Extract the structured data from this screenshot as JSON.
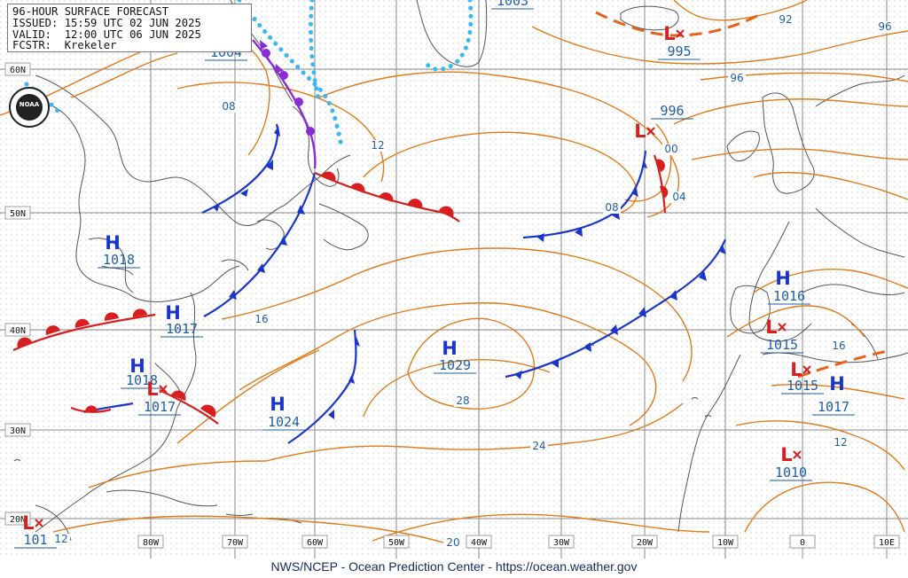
{
  "header": {
    "line1": "96-HOUR SURFACE FORECAST",
    "line2": "ISSUED: 15:59 UTC 02 JUN 2025",
    "line3": "VALID:  12:00 UTC 06 JUN 2025",
    "line4": "FCSTR:  Krekeler"
  },
  "logo_text": "NOAA",
  "footer": "NWS/NCEP - Ocean Prediction Center - https://ocean.weather.gov",
  "lat_labels": [
    "60N",
    "50N",
    "40N",
    "30N",
    "20N"
  ],
  "lon_labels": [
    "80W",
    "70W",
    "60W",
    "50W",
    "40W",
    "30W",
    "20W",
    "10W",
    "0",
    "10E"
  ],
  "isobar_labels": [
    "08",
    "12",
    "16",
    "20",
    "24",
    "28",
    "92",
    "96",
    "96",
    "00",
    "04",
    "08",
    "12",
    "16",
    "12"
  ],
  "systems": [
    {
      "type": "L",
      "value": "1003"
    },
    {
      "type": "L",
      "value": "1004"
    },
    {
      "type": "L",
      "value": "995"
    },
    {
      "type": "L",
      "value": "996"
    },
    {
      "type": "H",
      "value": "1018"
    },
    {
      "type": "H",
      "value": "1017"
    },
    {
      "type": "H",
      "value": "1018"
    },
    {
      "type": "L",
      "value": "1017"
    },
    {
      "type": "H",
      "value": "1024"
    },
    {
      "type": "H",
      "value": "1029"
    },
    {
      "type": "H",
      "value": "1016"
    },
    {
      "type": "L",
      "value": "1015"
    },
    {
      "type": "L",
      "value": "1015"
    },
    {
      "type": "H",
      "value": "1017"
    },
    {
      "type": "L",
      "value": "1010"
    },
    {
      "type": "L",
      "value": "101"
    }
  ],
  "colors": {
    "isobar": "#e07b1a",
    "cold_front": "#1a36c8",
    "warm_front": "#d81e1e",
    "occluded_front": "#8a2bd6",
    "ice_edge": "#3bb8f0",
    "coast": "#555555",
    "grid": "#8a8a8a"
  }
}
